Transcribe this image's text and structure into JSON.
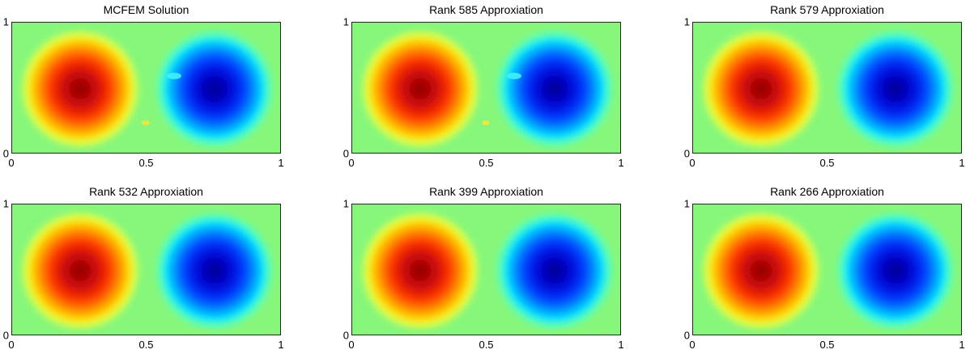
{
  "chart_data": [
    {
      "type": "heatmap",
      "title": "MCFEM Solution",
      "xticks": [
        "0",
        "0.5",
        "1"
      ],
      "yticks": [
        "0",
        "1"
      ],
      "xlim": [
        0,
        1
      ],
      "ylim": [
        0,
        1
      ],
      "colormap": "jet",
      "artifacts": true
    },
    {
      "type": "heatmap",
      "title": "Rank 585 Approxiation",
      "xticks": [
        "0",
        "0.5",
        "1"
      ],
      "yticks": [
        "0",
        "1"
      ],
      "xlim": [
        0,
        1
      ],
      "ylim": [
        0,
        1
      ],
      "colormap": "jet",
      "artifacts": true
    },
    {
      "type": "heatmap",
      "title": "Rank 579 Approxiation",
      "xticks": [
        "0",
        "0.5",
        "1"
      ],
      "yticks": [
        "0",
        "1"
      ],
      "xlim": [
        0,
        1
      ],
      "ylim": [
        0,
        1
      ],
      "colormap": "jet",
      "artifacts": false
    },
    {
      "type": "heatmap",
      "title": "Rank 532 Approxiation",
      "xticks": [
        "0",
        "0.5",
        "1"
      ],
      "yticks": [
        "0",
        "1"
      ],
      "xlim": [
        0,
        1
      ],
      "ylim": [
        0,
        1
      ],
      "colormap": "jet",
      "artifacts": false
    },
    {
      "type": "heatmap",
      "title": "Rank 399 Approxiation",
      "xticks": [
        "0",
        "0.5",
        "1"
      ],
      "yticks": [
        "0",
        "1"
      ],
      "xlim": [
        0,
        1
      ],
      "ylim": [
        0,
        1
      ],
      "colormap": "jet",
      "artifacts": false
    },
    {
      "type": "heatmap",
      "title": "Rank 266 Approxiation",
      "xticks": [
        "0",
        "0.5",
        "1"
      ],
      "yticks": [
        "0",
        "1"
      ],
      "xlim": [
        0,
        1
      ],
      "ylim": [
        0,
        1
      ],
      "colormap": "jet",
      "artifacts": false
    }
  ],
  "colors": {
    "field_background": "#86f77a",
    "hot_center": "#8b0000",
    "cold_center": "#00008f"
  }
}
